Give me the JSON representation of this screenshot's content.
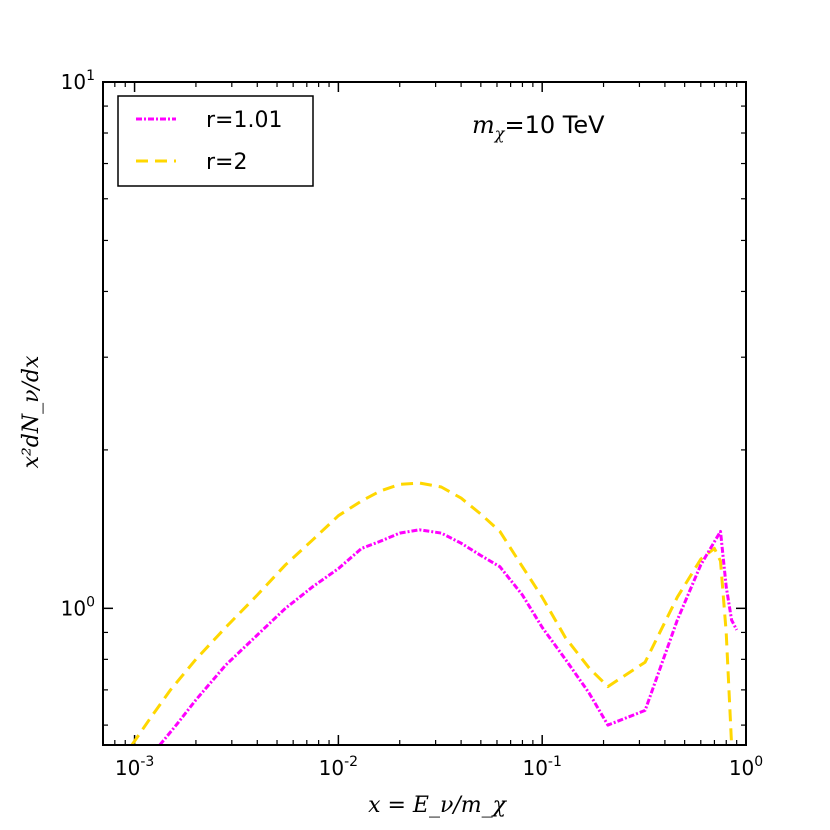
{
  "chart_data": {
    "type": "line",
    "xscale": "log",
    "yscale": "log",
    "xlim": [
      0.0007,
      1.0
    ],
    "ylim": [
      0.55,
      10
    ],
    "xlabel": "x = E_ν/m_χ",
    "ylabel": "x²dN_ν/dx",
    "annotation": {
      "prefix": "m",
      "subscript": "χ",
      "suffix": "=10 TeV"
    },
    "x_ticks": [
      {
        "base": "10",
        "exp": "-3",
        "value": 0.001
      },
      {
        "base": "10",
        "exp": "-2",
        "value": 0.01
      },
      {
        "base": "10",
        "exp": "-1",
        "value": 0.1
      },
      {
        "base": "10",
        "exp": "0",
        "value": 1
      }
    ],
    "y_ticks": [
      {
        "base": "10",
        "exp": "0",
        "value": 1
      },
      {
        "base": "10",
        "exp": "1",
        "value": 10
      }
    ],
    "legend": {
      "position": "top-left"
    },
    "series": [
      {
        "name": "r=1.01",
        "color": "#ff00ff",
        "style": "dashdot",
        "x": [
          0.00133,
          0.0016,
          0.002,
          0.0028,
          0.004,
          0.0055,
          0.0075,
          0.01,
          0.013,
          0.016,
          0.02,
          0.025,
          0.032,
          0.04,
          0.05,
          0.062,
          0.08,
          0.1,
          0.13,
          0.17,
          0.21,
          0.32,
          0.46,
          0.6,
          0.75,
          0.8,
          0.85,
          0.9
        ],
        "y": [
          0.55,
          0.6,
          0.67,
          0.78,
          0.89,
          1.0,
          1.1,
          1.19,
          1.3,
          1.34,
          1.39,
          1.41,
          1.39,
          1.33,
          1.26,
          1.2,
          1.06,
          0.92,
          0.8,
          0.69,
          0.6,
          0.64,
          0.95,
          1.21,
          1.4,
          1.1,
          0.95,
          0.91
        ]
      },
      {
        "name": "r=2",
        "color": "#ffd700",
        "style": "dashed",
        "x": [
          0.00097,
          0.0012,
          0.0015,
          0.002,
          0.0028,
          0.004,
          0.0055,
          0.0075,
          0.01,
          0.013,
          0.016,
          0.02,
          0.025,
          0.032,
          0.04,
          0.05,
          0.062,
          0.08,
          0.1,
          0.13,
          0.17,
          0.21,
          0.32,
          0.46,
          0.6,
          0.7,
          0.75,
          0.8,
          0.85
        ],
        "y": [
          0.55,
          0.62,
          0.7,
          0.8,
          0.92,
          1.06,
          1.21,
          1.35,
          1.5,
          1.6,
          1.67,
          1.72,
          1.73,
          1.7,
          1.62,
          1.51,
          1.4,
          1.2,
          1.05,
          0.88,
          0.77,
          0.71,
          0.79,
          1.05,
          1.24,
          1.3,
          1.23,
          0.9,
          0.55
        ]
      }
    ]
  }
}
